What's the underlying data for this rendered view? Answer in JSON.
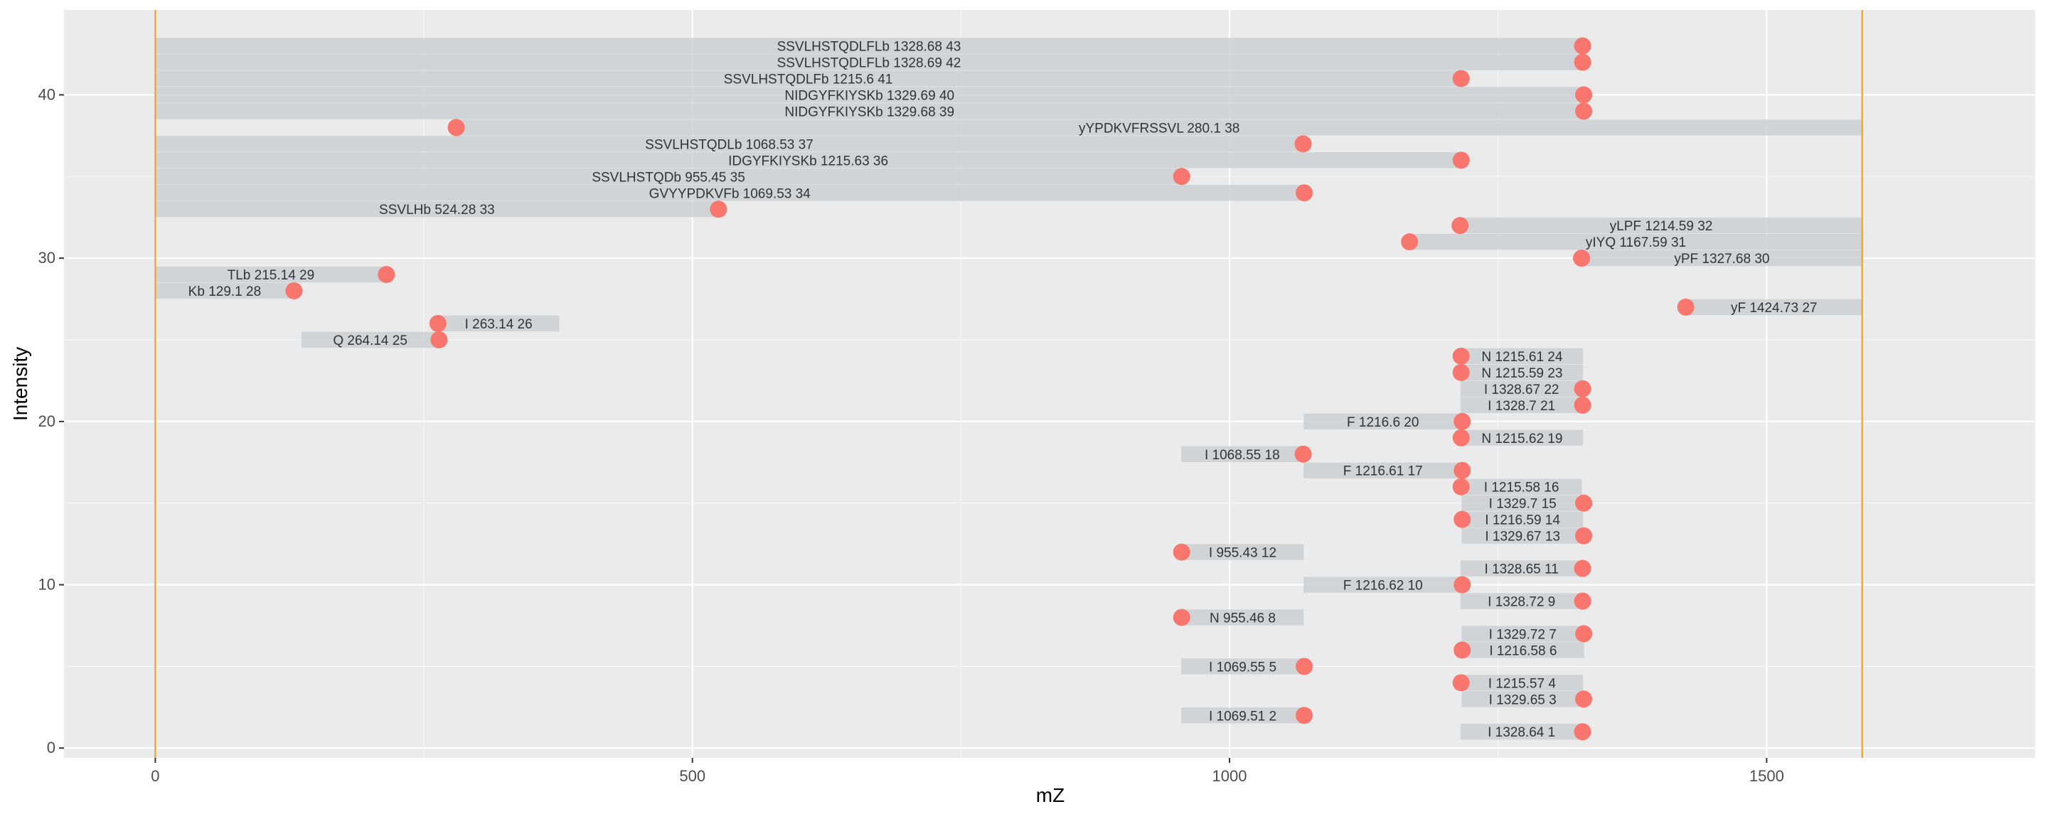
{
  "chart_data": {
    "type": "scatter",
    "title": "",
    "xlabel": "mZ",
    "ylabel": "Intensity",
    "xlim": [
      -85,
      1750
    ],
    "ylim": [
      -0.6,
      45.2
    ],
    "xticks": [
      0,
      500,
      1000,
      1500
    ],
    "yticks": [
      0,
      10,
      20,
      30,
      40
    ],
    "grid": true,
    "legend": "none",
    "vlines": [
      0,
      1589
    ],
    "colors": {
      "panel": "#ebebeb",
      "grid_major": "#ffffff",
      "grid_minor": "#f5f5f5",
      "bar": "#cdd0d4",
      "point": "#f8766d",
      "vline": "#f5a623",
      "text": "#333333"
    },
    "points": [
      {
        "label": "I 1328.64 1",
        "x": 1328.64,
        "y": 1,
        "bar": [
          1215,
          1328.64
        ]
      },
      {
        "label": "I 1069.51 2",
        "x": 1069.51,
        "y": 2,
        "bar": [
          955,
          1069.51
        ]
      },
      {
        "label": "I 1329.65 3",
        "x": 1329.65,
        "y": 3,
        "bar": [
          1216,
          1329.65
        ]
      },
      {
        "label": "I 1215.57 4",
        "x": 1215.57,
        "y": 4,
        "bar": [
          1215.57,
          1329
        ]
      },
      {
        "label": "I 1069.55 5",
        "x": 1069.55,
        "y": 5,
        "bar": [
          955,
          1069.55
        ]
      },
      {
        "label": "I 1216.58 6",
        "x": 1216.58,
        "y": 6,
        "bar": [
          1216.58,
          1330
        ]
      },
      {
        "label": "I 1329.72 7",
        "x": 1329.72,
        "y": 7,
        "bar": [
          1216,
          1329.72
        ]
      },
      {
        "label": "N 955.46 8",
        "x": 955.46,
        "y": 8,
        "bar": [
          955.46,
          1069
        ]
      },
      {
        "label": "I 1328.72 9",
        "x": 1328.72,
        "y": 9,
        "bar": [
          1215,
          1328.72
        ]
      },
      {
        "label": "F 1216.62 10",
        "x": 1216.62,
        "y": 10,
        "bar": [
          1069,
          1216.62
        ]
      },
      {
        "label": "I 1328.65 11",
        "x": 1328.65,
        "y": 11,
        "bar": [
          1215,
          1328.65
        ]
      },
      {
        "label": "I 955.43 12",
        "x": 955.43,
        "y": 12,
        "bar": [
          955.43,
          1069
        ]
      },
      {
        "label": "I 1329.67 13",
        "x": 1329.67,
        "y": 13,
        "bar": [
          1216,
          1329.67
        ]
      },
      {
        "label": "I 1216.59 14",
        "x": 1216.59,
        "y": 14,
        "bar": [
          1216.59,
          1329
        ]
      },
      {
        "label": "I 1329.7 15",
        "x": 1329.7,
        "y": 15,
        "bar": [
          1216,
          1329.7
        ]
      },
      {
        "label": "I 1215.58 16",
        "x": 1215.58,
        "y": 16,
        "bar": [
          1215.58,
          1328
        ]
      },
      {
        "label": "F 1216.61 17",
        "x": 1216.61,
        "y": 17,
        "bar": [
          1069,
          1216.61
        ]
      },
      {
        "label": "I 1068.55 18",
        "x": 1068.55,
        "y": 18,
        "bar": [
          955,
          1068.55
        ]
      },
      {
        "label": "N 1215.62 19",
        "x": 1215.62,
        "y": 19,
        "bar": [
          1215.62,
          1329
        ]
      },
      {
        "label": "F 1216.6 20",
        "x": 1216.6,
        "y": 20,
        "bar": [
          1069,
          1216.6
        ]
      },
      {
        "label": "I 1328.7 21",
        "x": 1328.7,
        "y": 21,
        "bar": [
          1215,
          1328.7
        ]
      },
      {
        "label": "I 1328.67 22",
        "x": 1328.67,
        "y": 22,
        "bar": [
          1215,
          1328.67
        ]
      },
      {
        "label": "N 1215.59 23",
        "x": 1215.59,
        "y": 23,
        "bar": [
          1215.59,
          1329
        ]
      },
      {
        "label": "N 1215.61 24",
        "x": 1215.61,
        "y": 24,
        "bar": [
          1215.61,
          1329
        ]
      },
      {
        "label": "Q 264.14 25",
        "x": 264.14,
        "y": 25,
        "bar": [
          136,
          264.14
        ]
      },
      {
        "label": "I 263.14 26",
        "x": 263.14,
        "y": 26,
        "bar": [
          263.14,
          376
        ]
      },
      {
        "label": "yF 1424.73 27",
        "x": 1424.73,
        "y": 27,
        "bar": [
          1424.73,
          1589
        ]
      },
      {
        "label": "Kb 129.1 28",
        "x": 129.1,
        "y": 28,
        "bar": [
          0,
          129.1
        ]
      },
      {
        "label": "TLb 215.14 29",
        "x": 215.14,
        "y": 29,
        "bar": [
          0,
          215.14
        ]
      },
      {
        "label": "yPF 1327.68 30",
        "x": 1327.68,
        "y": 30,
        "bar": [
          1327.68,
          1589
        ]
      },
      {
        "label": "yIYQ 1167.59 31",
        "x": 1167.59,
        "y": 31,
        "bar": [
          1167.59,
          1589
        ]
      },
      {
        "label": "yLPF 1214.59 32",
        "x": 1214.59,
        "y": 32,
        "bar": [
          1214.59,
          1589
        ]
      },
      {
        "label": "SSVLHb 524.28 33",
        "x": 524.28,
        "y": 33,
        "bar": [
          0,
          524.28
        ]
      },
      {
        "label": "GVYYPDKVFb 1069.53 34",
        "x": 1069.53,
        "y": 34,
        "bar": [
          0,
          1069.53
        ]
      },
      {
        "label": "SSVLHSTQDb 955.45 35",
        "x": 955.45,
        "y": 35,
        "bar": [
          0,
          955.45
        ]
      },
      {
        "label": "IDGYFKIYSKb 1215.63 36",
        "x": 1215.63,
        "y": 36,
        "bar": [
          0,
          1215.63
        ]
      },
      {
        "label": "SSVLHSTQDLb 1068.53 37",
        "x": 1068.53,
        "y": 37,
        "bar": [
          0,
          1068.53
        ]
      },
      {
        "label": "yYPDKVFRSSVL 280.1 38",
        "x": 280.1,
        "y": 38,
        "bar": [
          280.1,
          1589
        ]
      },
      {
        "label": "NIDGYFKIYSKb 1329.68 39",
        "x": 1329.68,
        "y": 39,
        "bar": [
          0,
          1329.68
        ]
      },
      {
        "label": "NIDGYFKIYSKb 1329.69 40",
        "x": 1329.69,
        "y": 40,
        "bar": [
          0,
          1329.69
        ]
      },
      {
        "label": "SSVLHSTQDLFb 1215.6 41",
        "x": 1215.6,
        "y": 41,
        "bar": [
          0,
          1215.6
        ]
      },
      {
        "label": "SSVLHSTQDLFLb 1328.69 42",
        "x": 1328.69,
        "y": 42,
        "bar": [
          0,
          1328.69
        ]
      },
      {
        "label": "SSVLHSTQDLFLb 1328.68 43",
        "x": 1328.68,
        "y": 43,
        "bar": [
          0,
          1328.68
        ]
      }
    ]
  }
}
